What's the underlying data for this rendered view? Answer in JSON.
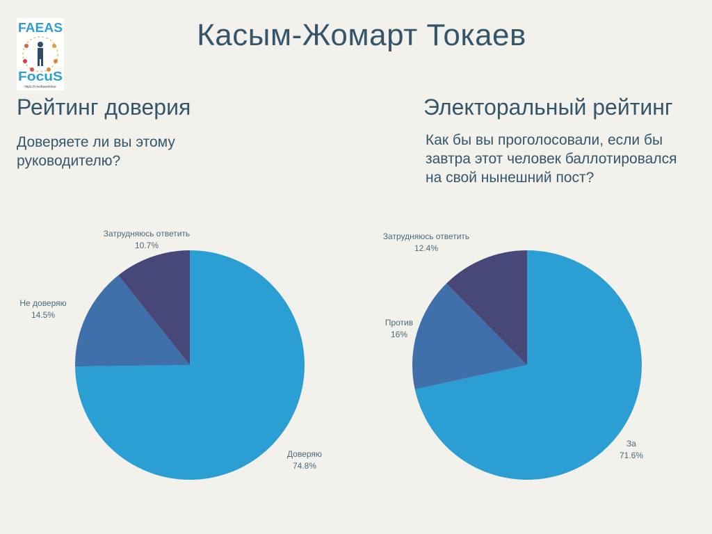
{
  "page": {
    "title": "Касым-Жомарт Токаев"
  },
  "logo": {
    "top_text": "FAEAS",
    "bottom_text": "FocuS",
    "url": "https://t.me/faeasfokus"
  },
  "panels": [
    {
      "heading": "Рейтинг доверия",
      "question_lines": [
        "Доверяете ли вы этому",
        "руководителю?"
      ]
    },
    {
      "heading": "Электоральный рейтинг",
      "question_lines": [
        "Как бы вы проголосовали, если бы",
        "завтра этот человек баллотировался",
        "на свой нынешний пост?"
      ]
    }
  ],
  "chart_data": [
    {
      "type": "pie",
      "title": "Рейтинг доверия",
      "slices": [
        {
          "label": "Доверяю",
          "value": 74.8,
          "display": "74.8%",
          "color": "#2b9ed3"
        },
        {
          "label": "Не доверяю",
          "value": 14.5,
          "display": "14.5%",
          "color": "#3f70aa"
        },
        {
          "label": "Затрудняюсь ответить",
          "value": 10.7,
          "display": "10.7%",
          "color": "#474878"
        }
      ]
    },
    {
      "type": "pie",
      "title": "Электоральный рейтинг",
      "slices": [
        {
          "label": "За",
          "value": 71.6,
          "display": "71.6%",
          "color": "#2b9ed3"
        },
        {
          "label": "Против",
          "value": 16,
          "display": "16%",
          "color": "#3f70aa"
        },
        {
          "label": "Затрудняюсь ответить",
          "value": 12.4,
          "display": "12.4%",
          "color": "#474878"
        }
      ]
    }
  ]
}
